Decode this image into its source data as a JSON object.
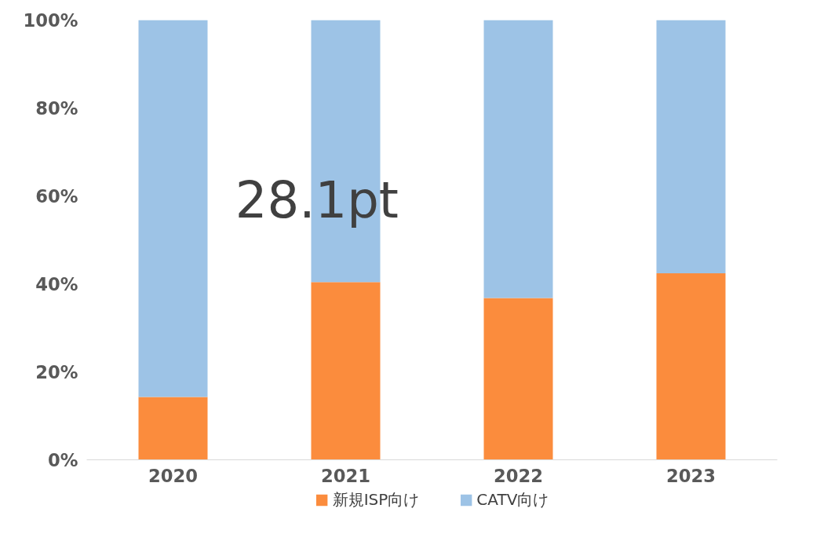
{
  "chart_data": {
    "type": "bar",
    "stacked": true,
    "categories": [
      "2020",
      "2021",
      "2022",
      "2023"
    ],
    "series": [
      {
        "name": "新規ISP向け",
        "color": "#fb8c3d",
        "values": [
          14.3,
          40.4,
          36.8,
          42.4
        ]
      },
      {
        "name": "CATV向け",
        "color": "#9dc3e6",
        "values": [
          85.7,
          59.6,
          63.2,
          57.6
        ]
      }
    ],
    "ylim": [
      0,
      100
    ],
    "yticks": [
      {
        "value": 0,
        "label": "0%"
      },
      {
        "value": 20,
        "label": "20%"
      },
      {
        "value": 40,
        "label": "40%"
      },
      {
        "value": 60,
        "label": "60%"
      },
      {
        "value": 80,
        "label": "80%"
      },
      {
        "value": 100,
        "label": "100%"
      }
    ],
    "grid": false,
    "legend": "bottom",
    "annotations": [
      "28.1pt"
    ]
  }
}
